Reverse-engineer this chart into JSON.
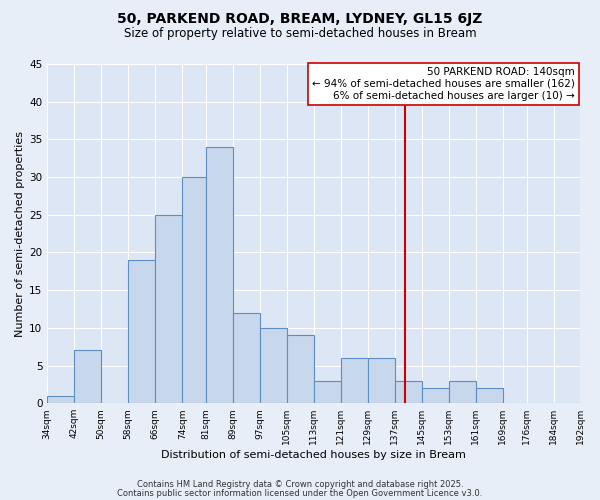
{
  "title": "50, PARKEND ROAD, BREAM, LYDNEY, GL15 6JZ",
  "subtitle": "Size of property relative to semi-detached houses in Bream",
  "xlabel": "Distribution of semi-detached houses by size in Bream",
  "ylabel": "Number of semi-detached properties",
  "bin_edges": [
    34,
    42,
    50,
    58,
    66,
    74,
    81,
    89,
    97,
    105,
    113,
    121,
    129,
    137,
    145,
    153,
    161,
    169,
    176,
    184,
    192
  ],
  "counts": [
    1,
    7,
    0,
    19,
    25,
    30,
    34,
    12,
    10,
    9,
    3,
    6,
    6,
    3,
    2,
    3,
    2,
    0,
    0,
    0
  ],
  "bar_facecolor": "#c8d8ec",
  "bar_edgecolor": "#5b8ec4",
  "vline_x": 140,
  "vline_color": "#cc0000",
  "annotation_line1": "50 PARKEND ROAD: 140sqm",
  "annotation_line2": "← 94% of semi-detached houses are smaller (162)",
  "annotation_line3": "6% of semi-detached houses are larger (10) →",
  "annotation_box_facecolor": "#ffffff",
  "annotation_box_edgecolor": "#cc0000",
  "ylim": [
    0,
    45
  ],
  "yticks": [
    0,
    5,
    10,
    15,
    20,
    25,
    30,
    35,
    40,
    45
  ],
  "tick_labels": [
    "34sqm",
    "42sqm",
    "50sqm",
    "58sqm",
    "66sqm",
    "74sqm",
    "81sqm",
    "89sqm",
    "97sqm",
    "105sqm",
    "113sqm",
    "121sqm",
    "129sqm",
    "137sqm",
    "145sqm",
    "153sqm",
    "161sqm",
    "169sqm",
    "176sqm",
    "184sqm",
    "192sqm"
  ],
  "footnote1": "Contains HM Land Registry data © Crown copyright and database right 2025.",
  "footnote2": "Contains public sector information licensed under the Open Government Licence v3.0.",
  "background_color": "#e8eef8",
  "plot_background_color": "#dce6f5",
  "grid_color": "#ffffff",
  "title_fontsize": 10,
  "subtitle_fontsize": 8.5,
  "annotation_fontsize": 7.5,
  "footnote_fontsize": 6,
  "ylabel_fontsize": 8,
  "xlabel_fontsize": 8
}
